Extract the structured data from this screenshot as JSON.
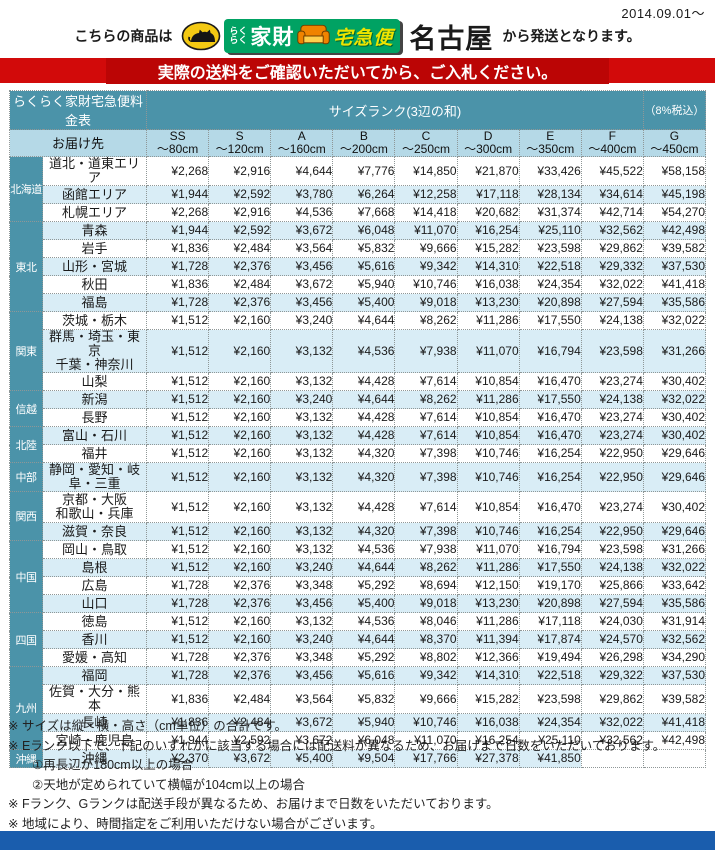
{
  "page": {
    "date": "2014.09.01～",
    "intro_prefix": "こちらの商品は",
    "origin": "名古屋",
    "intro_suffix": "から発送となります。",
    "banner_text": "実際の送料をご確認いただいてから、ご入札ください。"
  },
  "logo": {
    "raku_top": "らく",
    "raku_bottom": "らく",
    "kazai": "家財",
    "takkyubin": "宅急便",
    "cat_icon": "kuroneko-icon",
    "sofa_icon": "sofa-icon",
    "green": "#00a263",
    "cat_yellow": "#f3c913",
    "sofa_orange": "#f08300"
  },
  "colors": {
    "banner_red": "#d20a0a",
    "header_teal": "#4b93a9",
    "header_light_blue": "#b5d9e7",
    "row_stripe_blue": "#d9edf6",
    "bottom_bar_blue": "#1a5dad"
  },
  "table": {
    "title": "らくらく家財宅急便料金表",
    "size_rank_header": "サイズランク(3辺の和)",
    "tax_note": "（8%税込）",
    "destination_header": "お届け先",
    "size_ranks": [
      {
        "rank": "SS",
        "size": "～80cm"
      },
      {
        "rank": "S",
        "size": "～120cm"
      },
      {
        "rank": "A",
        "size": "～160cm"
      },
      {
        "rank": "B",
        "size": "～200cm"
      },
      {
        "rank": "C",
        "size": "～250cm"
      },
      {
        "rank": "D",
        "size": "～300cm"
      },
      {
        "rank": "E",
        "size": "～350cm"
      },
      {
        "rank": "F",
        "size": "～400cm"
      },
      {
        "rank": "G",
        "size": "～450cm"
      }
    ],
    "groups": [
      {
        "region": "北海道",
        "rows": [
          {
            "lines": [
              "道北・道東エリア"
            ],
            "values": [
              "¥2,268",
              "¥2,916",
              "¥4,644",
              "¥7,776",
              "¥14,850",
              "¥21,870",
              "¥33,426",
              "¥45,522",
              "¥58,158"
            ]
          },
          {
            "lines": [
              "函館エリア"
            ],
            "values": [
              "¥1,944",
              "¥2,592",
              "¥3,780",
              "¥6,264",
              "¥12,258",
              "¥17,118",
              "¥28,134",
              "¥34,614",
              "¥45,198"
            ]
          },
          {
            "lines": [
              "札幌エリア"
            ],
            "values": [
              "¥2,268",
              "¥2,916",
              "¥4,536",
              "¥7,668",
              "¥14,418",
              "¥20,682",
              "¥31,374",
              "¥42,714",
              "¥54,270"
            ]
          }
        ]
      },
      {
        "region": "東北",
        "rows": [
          {
            "lines": [
              "青森"
            ],
            "values": [
              "¥1,944",
              "¥2,592",
              "¥3,672",
              "¥6,048",
              "¥11,070",
              "¥16,254",
              "¥25,110",
              "¥32,562",
              "¥42,498"
            ]
          },
          {
            "lines": [
              "岩手"
            ],
            "values": [
              "¥1,836",
              "¥2,484",
              "¥3,564",
              "¥5,832",
              "¥9,666",
              "¥15,282",
              "¥23,598",
              "¥29,862",
              "¥39,582"
            ]
          },
          {
            "lines": [
              "山形・宮城"
            ],
            "values": [
              "¥1,728",
              "¥2,376",
              "¥3,456",
              "¥5,616",
              "¥9,342",
              "¥14,310",
              "¥22,518",
              "¥29,332",
              "¥37,530"
            ]
          },
          {
            "lines": [
              "秋田"
            ],
            "values": [
              "¥1,836",
              "¥2,484",
              "¥3,672",
              "¥5,940",
              "¥10,746",
              "¥16,038",
              "¥24,354",
              "¥32,022",
              "¥41,418"
            ]
          },
          {
            "lines": [
              "福島"
            ],
            "values": [
              "¥1,728",
              "¥2,376",
              "¥3,456",
              "¥5,400",
              "¥9,018",
              "¥13,230",
              "¥20,898",
              "¥27,594",
              "¥35,586"
            ]
          }
        ]
      },
      {
        "region": "関東",
        "rows": [
          {
            "lines": [
              "茨城・栃木"
            ],
            "values": [
              "¥1,512",
              "¥2,160",
              "¥3,240",
              "¥4,644",
              "¥8,262",
              "¥11,286",
              "¥17,550",
              "¥24,138",
              "¥32,022"
            ]
          },
          {
            "lines": [
              "群馬・埼玉・東京",
              "千葉・神奈川"
            ],
            "values": [
              "¥1,512",
              "¥2,160",
              "¥3,132",
              "¥4,536",
              "¥7,938",
              "¥11,070",
              "¥16,794",
              "¥23,598",
              "¥31,266"
            ]
          },
          {
            "lines": [
              "山梨"
            ],
            "values": [
              "¥1,512",
              "¥2,160",
              "¥3,132",
              "¥4,428",
              "¥7,614",
              "¥10,854",
              "¥16,470",
              "¥23,274",
              "¥30,402"
            ]
          }
        ]
      },
      {
        "region": "信越",
        "rows": [
          {
            "lines": [
              "新潟"
            ],
            "values": [
              "¥1,512",
              "¥2,160",
              "¥3,240",
              "¥4,644",
              "¥8,262",
              "¥11,286",
              "¥17,550",
              "¥24,138",
              "¥32,022"
            ]
          },
          {
            "lines": [
              "長野"
            ],
            "values": [
              "¥1,512",
              "¥2,160",
              "¥3,132",
              "¥4,428",
              "¥7,614",
              "¥10,854",
              "¥16,470",
              "¥23,274",
              "¥30,402"
            ]
          }
        ]
      },
      {
        "region": "北陸",
        "rows": [
          {
            "lines": [
              "富山・石川"
            ],
            "values": [
              "¥1,512",
              "¥2,160",
              "¥3,132",
              "¥4,428",
              "¥7,614",
              "¥10,854",
              "¥16,470",
              "¥23,274",
              "¥30,402"
            ]
          },
          {
            "lines": [
              "福井"
            ],
            "values": [
              "¥1,512",
              "¥2,160",
              "¥3,132",
              "¥4,320",
              "¥7,398",
              "¥10,746",
              "¥16,254",
              "¥22,950",
              "¥29,646"
            ]
          }
        ]
      },
      {
        "region": "中部",
        "rows": [
          {
            "lines": [
              "静岡・愛知・岐阜・三重"
            ],
            "values": [
              "¥1,512",
              "¥2,160",
              "¥3,132",
              "¥4,320",
              "¥7,398",
              "¥10,746",
              "¥16,254",
              "¥22,950",
              "¥29,646"
            ]
          }
        ]
      },
      {
        "region": "関西",
        "rows": [
          {
            "lines": [
              "京都・大阪",
              "和歌山・兵庫"
            ],
            "values": [
              "¥1,512",
              "¥2,160",
              "¥3,132",
              "¥4,428",
              "¥7,614",
              "¥10,854",
              "¥16,470",
              "¥23,274",
              "¥30,402"
            ]
          },
          {
            "lines": [
              "滋賀・奈良"
            ],
            "values": [
              "¥1,512",
              "¥2,160",
              "¥3,132",
              "¥4,320",
              "¥7,398",
              "¥10,746",
              "¥16,254",
              "¥22,950",
              "¥29,646"
            ]
          }
        ]
      },
      {
        "region": "中国",
        "rows": [
          {
            "lines": [
              "岡山・鳥取"
            ],
            "values": [
              "¥1,512",
              "¥2,160",
              "¥3,132",
              "¥4,536",
              "¥7,938",
              "¥11,070",
              "¥16,794",
              "¥23,598",
              "¥31,266"
            ]
          },
          {
            "lines": [
              "島根"
            ],
            "values": [
              "¥1,512",
              "¥2,160",
              "¥3,240",
              "¥4,644",
              "¥8,262",
              "¥11,286",
              "¥17,550",
              "¥24,138",
              "¥32,022"
            ]
          },
          {
            "lines": [
              "広島"
            ],
            "values": [
              "¥1,728",
              "¥2,376",
              "¥3,348",
              "¥5,292",
              "¥8,694",
              "¥12,150",
              "¥19,170",
              "¥25,866",
              "¥33,642"
            ]
          },
          {
            "lines": [
              "山口"
            ],
            "values": [
              "¥1,728",
              "¥2,376",
              "¥3,456",
              "¥5,400",
              "¥9,018",
              "¥13,230",
              "¥20,898",
              "¥27,594",
              "¥35,586"
            ]
          }
        ]
      },
      {
        "region": "四国",
        "rows": [
          {
            "lines": [
              "徳島"
            ],
            "values": [
              "¥1,512",
              "¥2,160",
              "¥3,132",
              "¥4,536",
              "¥8,046",
              "¥11,286",
              "¥17,118",
              "¥24,030",
              "¥31,914"
            ]
          },
          {
            "lines": [
              "香川"
            ],
            "values": [
              "¥1,512",
              "¥2,160",
              "¥3,240",
              "¥4,644",
              "¥8,370",
              "¥11,394",
              "¥17,874",
              "¥24,570",
              "¥32,562"
            ]
          },
          {
            "lines": [
              "愛媛・高知"
            ],
            "values": [
              "¥1,728",
              "¥2,376",
              "¥3,348",
              "¥5,292",
              "¥8,802",
              "¥12,366",
              "¥19,494",
              "¥26,298",
              "¥34,290"
            ]
          }
        ]
      },
      {
        "region": "九州",
        "rows": [
          {
            "lines": [
              "福岡"
            ],
            "values": [
              "¥1,728",
              "¥2,376",
              "¥3,456",
              "¥5,616",
              "¥9,342",
              "¥14,310",
              "¥22,518",
              "¥29,322",
              "¥37,530"
            ]
          },
          {
            "lines": [
              "佐賀・大分・熊本"
            ],
            "values": [
              "¥1,836",
              "¥2,484",
              "¥3,564",
              "¥5,832",
              "¥9,666",
              "¥15,282",
              "¥23,598",
              "¥29,862",
              "¥39,582"
            ]
          },
          {
            "lines": [
              "長崎"
            ],
            "values": [
              "¥1,836",
              "¥2,484",
              "¥3,672",
              "¥5,940",
              "¥10,746",
              "¥16,038",
              "¥24,354",
              "¥32,022",
              "¥41,418"
            ]
          },
          {
            "lines": [
              "宮崎・鹿児島"
            ],
            "values": [
              "¥1,944",
              "¥2,592",
              "¥3,672",
              "¥6,048",
              "¥11,070",
              "¥16,254",
              "¥25,110",
              "¥32,562",
              "¥42,498"
            ]
          }
        ]
      },
      {
        "region": "沖縄",
        "rows": [
          {
            "lines": [
              "沖縄"
            ],
            "values": [
              "¥2,370",
              "¥3,672",
              "¥5,400",
              "¥9,504",
              "¥17,766",
              "¥27,378",
              "¥41,850",
              null,
              null
            ]
          }
        ]
      }
    ]
  },
  "notes": [
    {
      "text": "※ サイズは縦・横・高さ（cm単位）の合計です。",
      "indent": false
    },
    {
      "text": "※ Eランク以下で、下記のいずれかに該当する場合には配送料が異なるため、お届けまで日数をいただいております。",
      "indent": false
    },
    {
      "text": "①再長辺が180cm以上の場合",
      "indent": true
    },
    {
      "text": "②天地が定められていて横幅が104cm以上の場合",
      "indent": true
    },
    {
      "text": "※ Fランク、Gランクは配送手段が異なるため、お届けまで日数をいただいております。",
      "indent": false
    },
    {
      "text": "※ 地域により、時間指定をご利用いただけない場合がございます。",
      "indent": false
    }
  ]
}
